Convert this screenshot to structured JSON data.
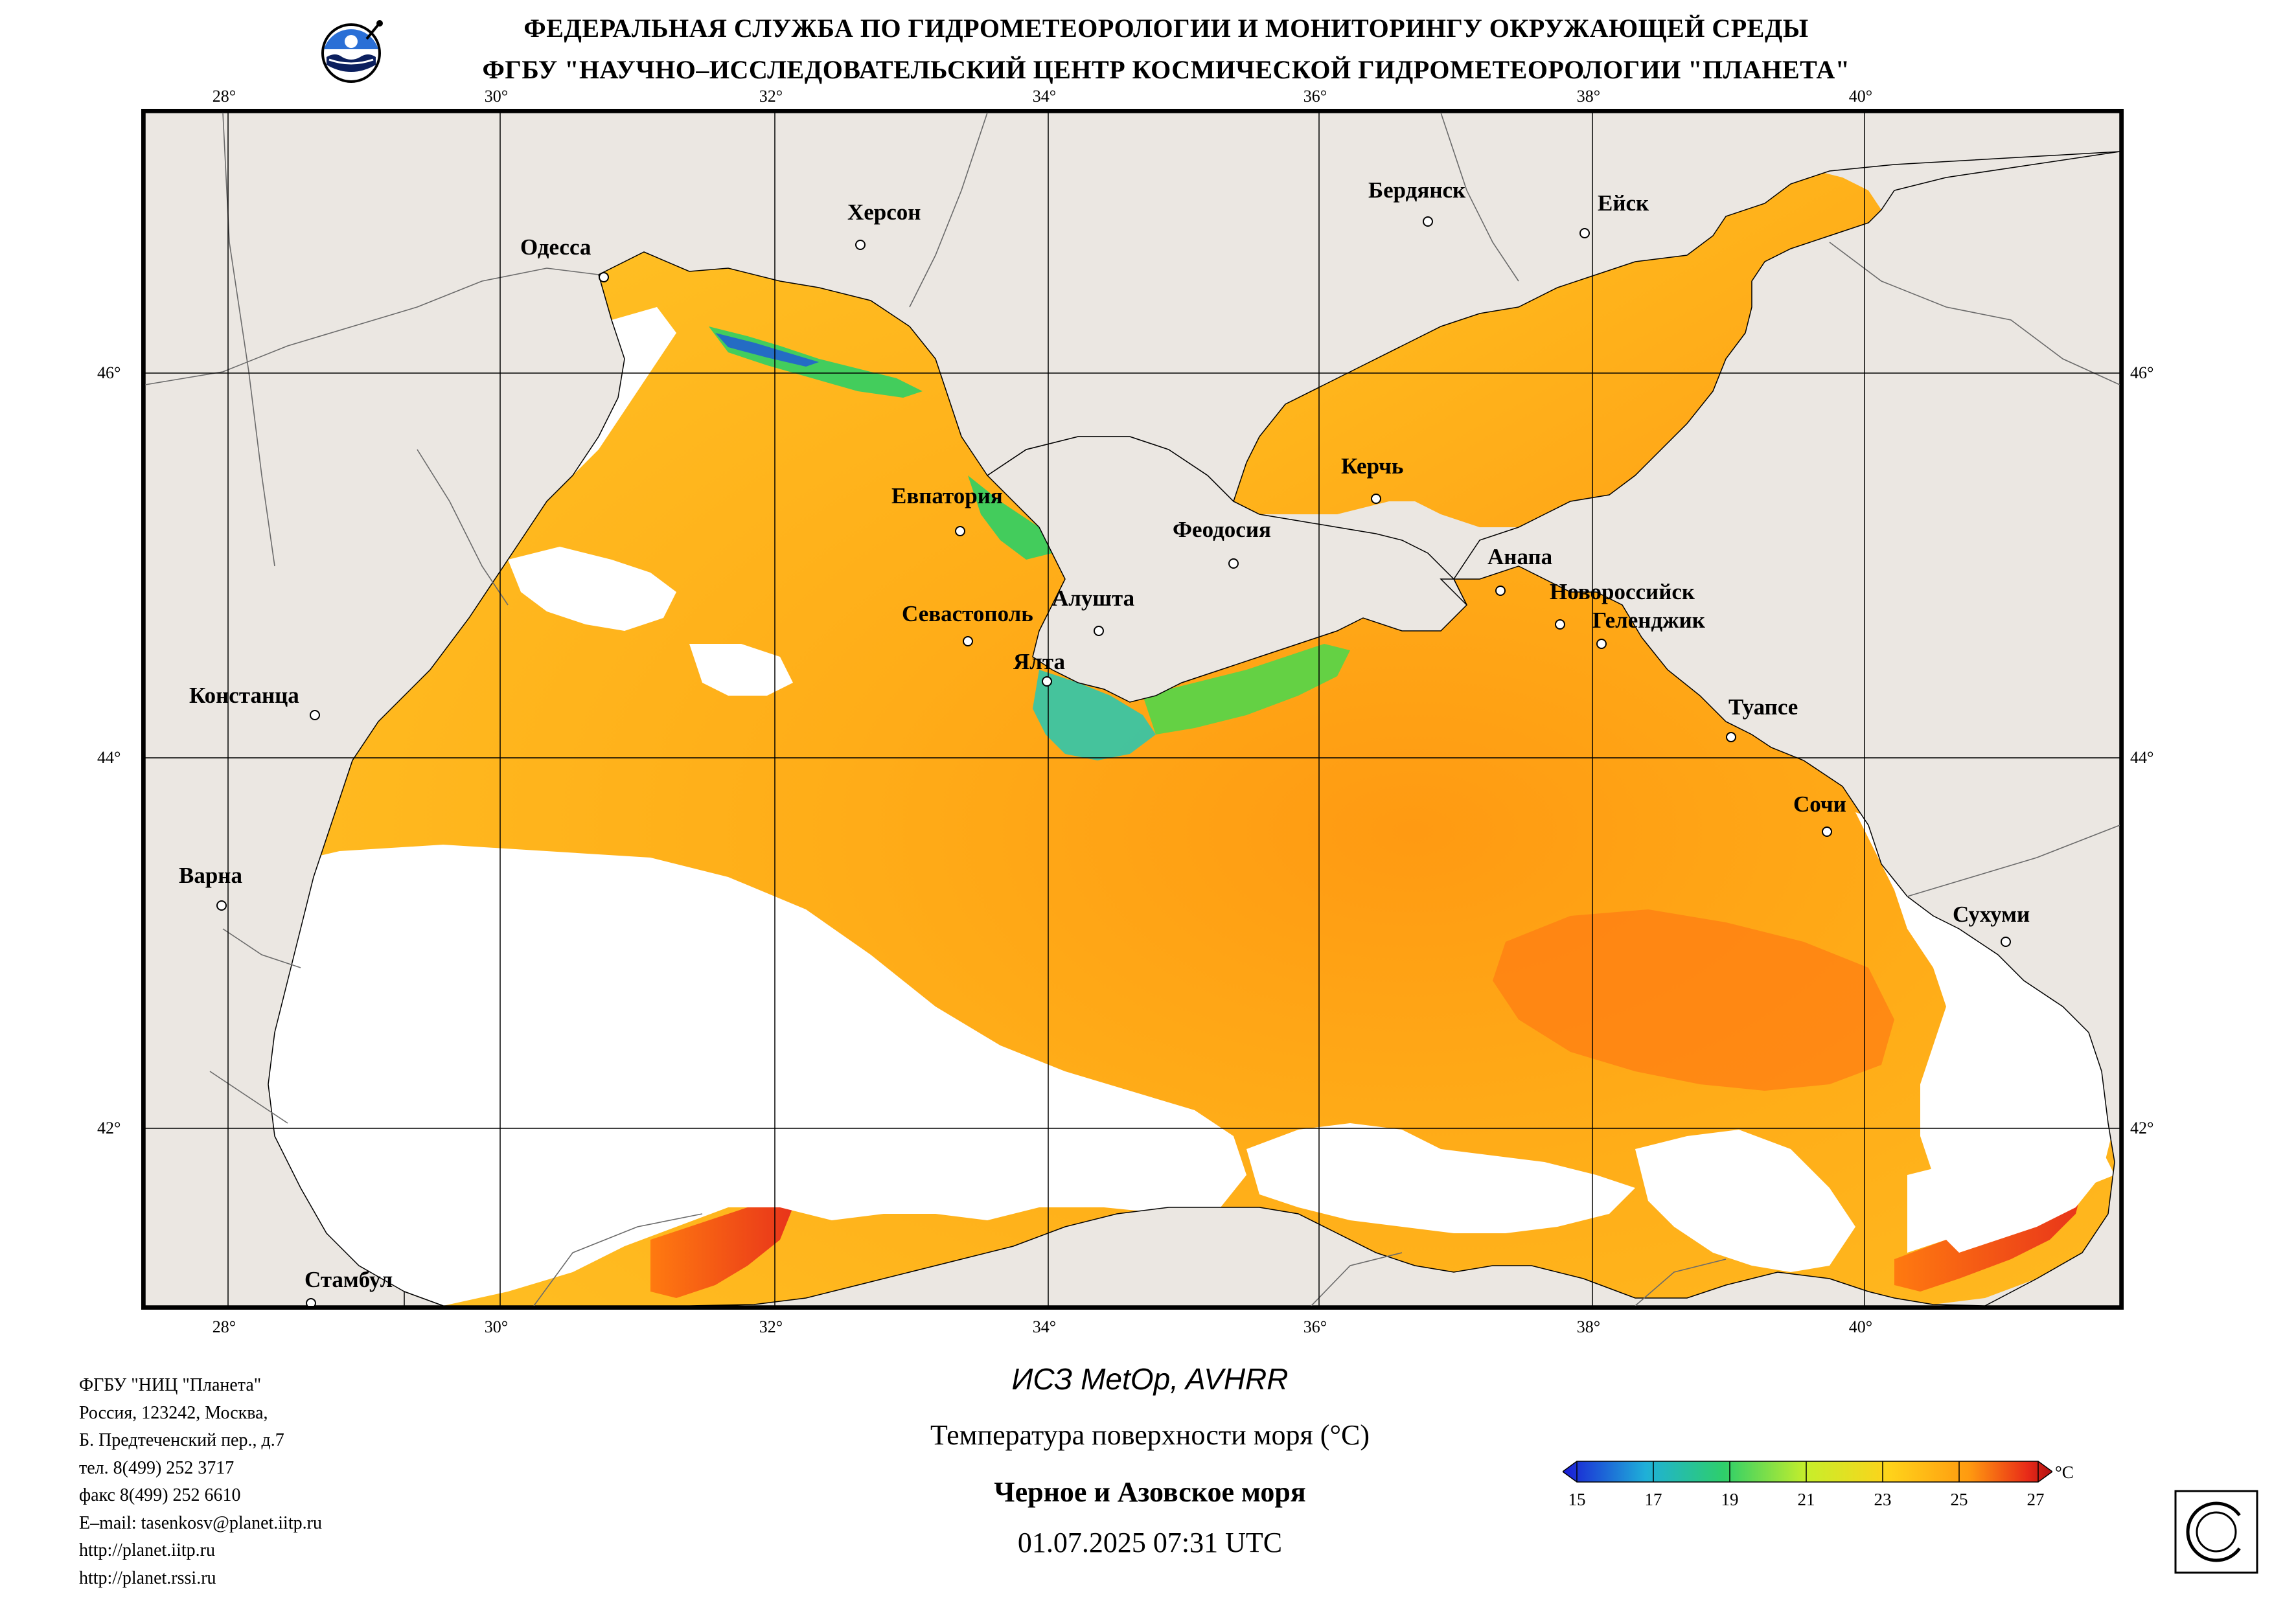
{
  "header": {
    "line1": "ФЕДЕРАЛЬНАЯ СЛУЖБА ПО ГИДРОМЕТЕОРОЛОГИИ И МОНИТОРИНГУ ОКРУЖАЮЩЕЙ СРЕДЫ",
    "line2": "ФГБУ \"НАУЧНО–ИССЛЕДОВАТЕЛЬСКИЙ ЦЕНТР КОСМИЧЕСКОЙ ГИДРОМЕТЕОРОЛОГИИ \"ПЛАНЕТА\""
  },
  "map": {
    "longitudes": [
      "28°",
      "30°",
      "32°",
      "34°",
      "36°",
      "38°",
      "40°"
    ],
    "latitudes": [
      "46°",
      "44°",
      "42°"
    ],
    "cities": [
      "Одесса",
      "Херсон",
      "Бердянск",
      "Ейск",
      "Евпатория",
      "Керчь",
      "Феодосия",
      "Анапа",
      "Новороссийск",
      "Геленджик",
      "Севастополь",
      "Алушта",
      "Ялта",
      "Констанца",
      "Туапсе",
      "Сочи",
      "Варна",
      "Сухуми",
      "Стамбул"
    ],
    "colors": {
      "land": "#ebe7e2",
      "no_data": "#ffffff",
      "grid": "#000000"
    }
  },
  "footer": {
    "contact": [
      "ФГБУ \"НИЦ \"Планета\"",
      "Россия, 123242, Москва,",
      "Б. Предтеченский пер., д.7",
      "тел. 8(499) 252 3717",
      "факс 8(499) 252 6610",
      "E–mail: tasenkosv@planet.iitp.ru",
      "http://planet.iitp.ru",
      "http://planet.rssi.ru"
    ],
    "satellite": "ИСЗ MetOp, AVHRR",
    "parameter": "Температура поверхности моря (°C)",
    "region": "Черное и Азовское моря",
    "datetime": "01.07.2025 07:31 UTC"
  },
  "colorbar": {
    "ticks": [
      "15",
      "17",
      "19",
      "21",
      "23",
      "25",
      "27"
    ],
    "unit": "°C",
    "colors": [
      "#1a1ad6",
      "#1fb0d8",
      "#2ecf6a",
      "#c8ee2a",
      "#ffd21a",
      "#ff9a10",
      "#e82a18",
      "#b01010"
    ]
  }
}
